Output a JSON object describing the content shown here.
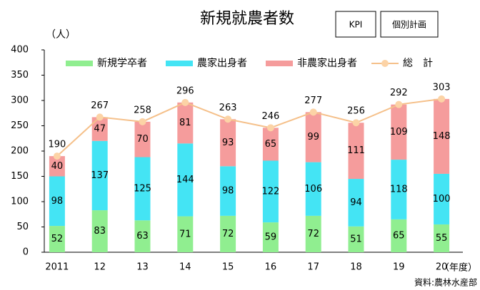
{
  "chart_data": {
    "type": "stacked_bar_line",
    "title": "新規就農者数",
    "buttons": [
      "KPI",
      "個別計画"
    ],
    "y_label": "（人）",
    "x_label": "（年度）",
    "source": "資料:農林水産部",
    "categories": [
      "2011",
      "12",
      "13",
      "14",
      "15",
      "16",
      "17",
      "18",
      "19",
      "20"
    ],
    "series": [
      {
        "name": "新規学卒者",
        "color": "#90ee90",
        "values": [
          52,
          83,
          63,
          71,
          72,
          59,
          72,
          51,
          65,
          55
        ]
      },
      {
        "name": "農家出身者",
        "color": "#44e4f4",
        "values": [
          98,
          137,
          125,
          144,
          98,
          122,
          106,
          94,
          118,
          100
        ]
      },
      {
        "name": "非農家出身者",
        "color": "#f59c9c",
        "values": [
          40,
          47,
          70,
          81,
          93,
          65,
          99,
          111,
          109,
          148
        ]
      },
      {
        "name": "総　計",
        "color": "#f5c08a",
        "type": "line",
        "values": [
          190,
          267,
          258,
          296,
          263,
          246,
          277,
          256,
          292,
          303
        ]
      }
    ],
    "ylim": [
      0,
      400
    ],
    "yticks": [
      0,
      50,
      100,
      150,
      200,
      250,
      300,
      350,
      400
    ],
    "legend": "top"
  }
}
